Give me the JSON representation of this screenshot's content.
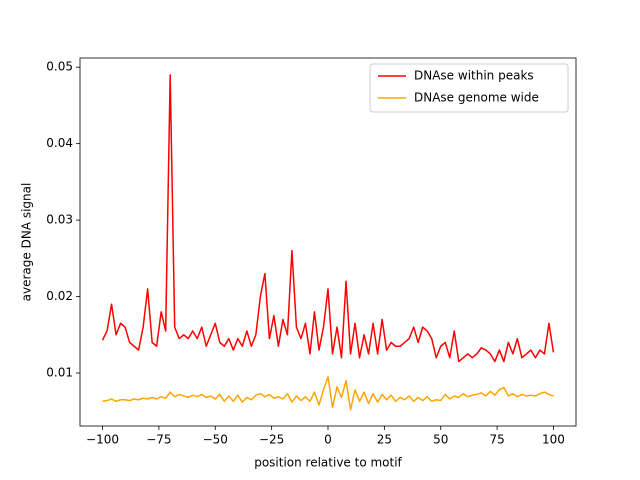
{
  "chart_data": {
    "type": "line",
    "xlabel": "position relative to motif",
    "ylabel": "average DNA signal",
    "x": [
      -100,
      -98,
      -96,
      -94,
      -92,
      -90,
      -88,
      -86,
      -84,
      -82,
      -80,
      -78,
      -76,
      -74,
      -72,
      -70,
      -68,
      -66,
      -64,
      -62,
      -60,
      -58,
      -56,
      -54,
      -52,
      -50,
      -48,
      -46,
      -44,
      -42,
      -40,
      -38,
      -36,
      -34,
      -32,
      -30,
      -28,
      -26,
      -24,
      -22,
      -20,
      -18,
      -16,
      -14,
      -12,
      -10,
      -8,
      -6,
      -4,
      -2,
      0,
      2,
      4,
      6,
      8,
      10,
      12,
      14,
      16,
      18,
      20,
      22,
      24,
      26,
      28,
      30,
      32,
      34,
      36,
      38,
      40,
      42,
      44,
      46,
      48,
      50,
      52,
      54,
      56,
      58,
      60,
      62,
      64,
      66,
      68,
      70,
      72,
      74,
      76,
      78,
      80,
      82,
      84,
      86,
      88,
      90,
      92,
      94,
      96,
      98,
      100
    ],
    "series": [
      {
        "name": "DNAse within peaks",
        "color": "#ff0000",
        "values": [
          0.0143,
          0.0155,
          0.019,
          0.015,
          0.0165,
          0.016,
          0.014,
          0.0135,
          0.013,
          0.016,
          0.021,
          0.014,
          0.0135,
          0.018,
          0.0155,
          0.049,
          0.016,
          0.0145,
          0.015,
          0.0145,
          0.0155,
          0.0145,
          0.016,
          0.0135,
          0.015,
          0.0165,
          0.014,
          0.0135,
          0.0145,
          0.013,
          0.0145,
          0.0135,
          0.0155,
          0.0135,
          0.015,
          0.02,
          0.023,
          0.0145,
          0.0175,
          0.0135,
          0.017,
          0.015,
          0.026,
          0.016,
          0.0145,
          0.0165,
          0.0125,
          0.018,
          0.013,
          0.016,
          0.021,
          0.0125,
          0.016,
          0.012,
          0.022,
          0.0125,
          0.0165,
          0.012,
          0.015,
          0.0125,
          0.0165,
          0.0125,
          0.017,
          0.013,
          0.014,
          0.0135,
          0.0135,
          0.014,
          0.0145,
          0.016,
          0.014,
          0.016,
          0.0155,
          0.0145,
          0.012,
          0.0135,
          0.014,
          0.012,
          0.0155,
          0.0115,
          0.012,
          0.0125,
          0.012,
          0.0125,
          0.0133,
          0.013,
          0.0125,
          0.0115,
          0.013,
          0.0115,
          0.014,
          0.0125,
          0.0145,
          0.012,
          0.0125,
          0.013,
          0.012,
          0.013,
          0.0125,
          0.0165,
          0.0127
        ]
      },
      {
        "name": "DNAse genome wide",
        "color": "#ffa500",
        "values": [
          0.0063,
          0.0064,
          0.0066,
          0.0063,
          0.0065,
          0.0065,
          0.0064,
          0.0066,
          0.0065,
          0.0067,
          0.0066,
          0.0068,
          0.0066,
          0.0069,
          0.0067,
          0.0075,
          0.0069,
          0.0072,
          0.007,
          0.0068,
          0.0071,
          0.0069,
          0.0072,
          0.0068,
          0.007,
          0.0066,
          0.0072,
          0.0063,
          0.007,
          0.0063,
          0.0071,
          0.0062,
          0.0068,
          0.0065,
          0.0071,
          0.0073,
          0.0069,
          0.0072,
          0.0067,
          0.0069,
          0.0066,
          0.0073,
          0.0062,
          0.007,
          0.0064,
          0.0069,
          0.0063,
          0.0075,
          0.0058,
          0.0078,
          0.0095,
          0.0055,
          0.0082,
          0.0068,
          0.009,
          0.0052,
          0.0078,
          0.0063,
          0.0075,
          0.006,
          0.0073,
          0.0062,
          0.0072,
          0.0065,
          0.0071,
          0.0063,
          0.0068,
          0.0065,
          0.007,
          0.0063,
          0.0068,
          0.0064,
          0.0069,
          0.0063,
          0.0065,
          0.0064,
          0.0072,
          0.0066,
          0.007,
          0.0068,
          0.0073,
          0.0069,
          0.0071,
          0.0072,
          0.0074,
          0.007,
          0.0076,
          0.0071,
          0.0078,
          0.0081,
          0.007,
          0.0073,
          0.0069,
          0.0072,
          0.007,
          0.0071,
          0.007,
          0.0073,
          0.0075,
          0.0072,
          0.007
        ]
      }
    ],
    "xlim": [
      -110,
      110
    ],
    "xticks": [
      {
        "value": -100,
        "label": "−100"
      },
      {
        "value": -75,
        "label": "−75"
      },
      {
        "value": -50,
        "label": "−50"
      },
      {
        "value": -25,
        "label": "−25"
      },
      0,
      25,
      50,
      75,
      100
    ],
    "ylim": [
      0.00307,
      0.0512
    ],
    "yticks": [
      0.01,
      0.02,
      0.03,
      0.04,
      0.05
    ],
    "legend": "upper right"
  }
}
